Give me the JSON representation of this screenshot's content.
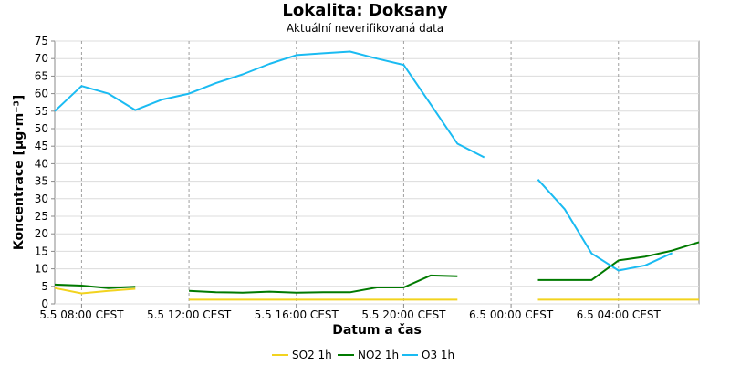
{
  "chart_data": {
    "type": "line",
    "title": "Lokalita: Doksany",
    "subtitle": "Aktuální neverifikovaná data",
    "xlabel": "Datum a čas",
    "ylabel": "Koncentrace [µg·m⁻³]",
    "ylim": [
      0,
      75
    ],
    "yticks": [
      0,
      5,
      10,
      15,
      20,
      25,
      30,
      35,
      40,
      45,
      50,
      55,
      60,
      65,
      70,
      75
    ],
    "grid": true,
    "legend_position": "bottom",
    "x_start": "5.5 07:00 CEST",
    "x_end": "6.5 07:00 CEST",
    "x_tick_labels": [
      "5.5 08:00 CEST",
      "5.5 12:00 CEST",
      "5.5 16:00 CEST",
      "5.5 20:00 CEST",
      "6.5 00:00 CEST",
      "6.5 04:00 CEST"
    ],
    "x": [
      "5.5 07:00",
      "5.5 08:00",
      "5.5 09:00",
      "5.5 10:00",
      "5.5 11:00",
      "5.5 12:00",
      "5.5 13:00",
      "5.5 14:00",
      "5.5 15:00",
      "5.5 16:00",
      "5.5 17:00",
      "5.5 18:00",
      "5.5 19:00",
      "5.5 20:00",
      "5.5 21:00",
      "5.5 22:00",
      "5.5 23:00",
      "6.5 00:00",
      "6.5 01:00",
      "6.5 02:00",
      "6.5 03:00",
      "6.5 04:00",
      "6.5 05:00",
      "6.5 06:00",
      "6.5 07:00"
    ],
    "series": [
      {
        "name": "SO2 1h",
        "color": "#F2D31F",
        "values": [
          4.5,
          3.0,
          3.7,
          4.3,
          null,
          1.2,
          1.2,
          1.2,
          1.2,
          1.2,
          1.2,
          1.2,
          1.2,
          1.2,
          1.2,
          1.2,
          null,
          null,
          1.2,
          1.2,
          1.2,
          1.2,
          1.2,
          1.2,
          1.2
        ]
      },
      {
        "name": "NO2 1h",
        "color": "#007A00",
        "values": [
          5.5,
          5.2,
          4.5,
          4.9,
          null,
          3.7,
          3.3,
          3.2,
          3.5,
          3.2,
          3.3,
          3.3,
          4.7,
          4.7,
          8.1,
          7.9,
          null,
          null,
          6.8,
          6.8,
          6.8,
          12.4,
          13.5,
          15.2,
          17.6
        ]
      },
      {
        "name": "O3 1h",
        "color": "#1ABBF2",
        "values": [
          55.0,
          62.2,
          60.0,
          55.3,
          58.3,
          60.0,
          63.0,
          65.5,
          68.5,
          71.0,
          71.5,
          72.0,
          70.0,
          68.2,
          57.0,
          45.7,
          41.8,
          null,
          35.5,
          27.0,
          14.4,
          9.5,
          11.0,
          14.5,
          null
        ]
      }
    ]
  }
}
